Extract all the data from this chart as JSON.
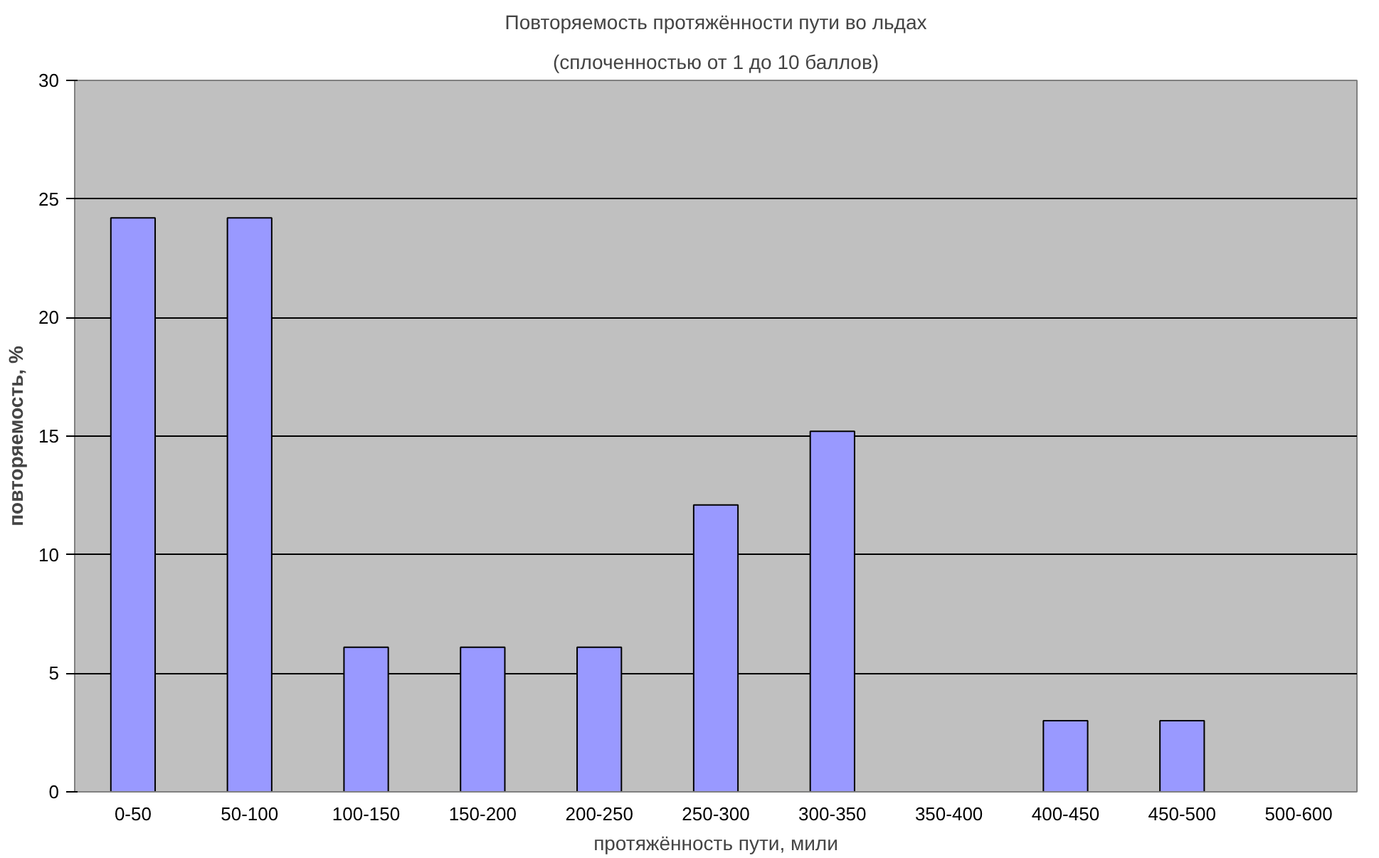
{
  "chart_data": {
    "type": "bar",
    "title": "Повторяемость протяжённости пути во льдах",
    "subtitle": "(сплоченностью от 1 до 10 баллов)",
    "xlabel": "протяжённость пути, мили",
    "ylabel": "повторяемость, %",
    "categories": [
      "0-50",
      "50-100",
      "100-150",
      "150-200",
      "200-250",
      "250-300",
      "300-350",
      "350-400",
      "400-450",
      "450-500",
      "500-600"
    ],
    "values": [
      24.2,
      24.2,
      6.1,
      6.1,
      6.1,
      12.1,
      15.2,
      null,
      3.0,
      3.0,
      null
    ],
    "color": "#9999ff",
    "ylim": [
      0,
      30
    ],
    "yticks": [
      0,
      5,
      10,
      15,
      20,
      25,
      30
    ],
    "grid": "y"
  }
}
